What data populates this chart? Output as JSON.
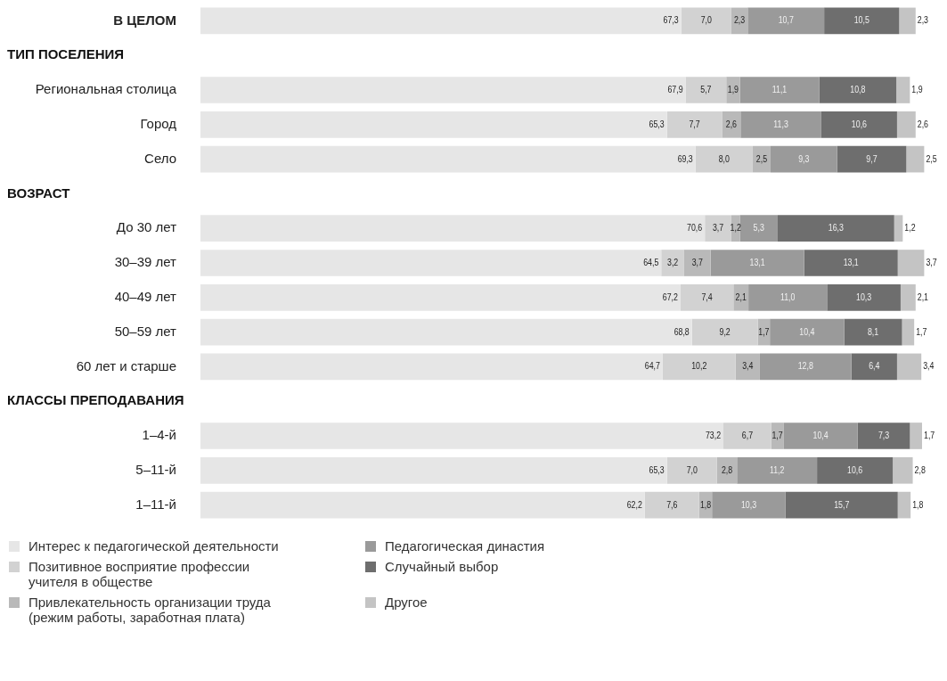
{
  "chart_data": {
    "type": "bar",
    "orientation": "horizontal",
    "stacked": true,
    "legend": "bottom",
    "tick_labels": false,
    "xlim": [
      0,
      101.5
    ],
    "annotations": [
      "ТИП ПОСЕЛЕНИЯ",
      "ВОЗРАСТ",
      "КЛАССЫ ПРЕПОДАВАНИЯ"
    ],
    "categories": [
      "В ЦЕЛОМ",
      null,
      "Региональная столица",
      "Город",
      "Село",
      null,
      "До 30 лет",
      "30–39 лет",
      "40–49 лет",
      "50–59 лет",
      "60 лет и старше",
      null,
      "1–4-й",
      "5–11-й",
      "1–11-й"
    ],
    "series": [
      {
        "name": "Интерес к педагогической деятельности",
        "color": "#e6e6e6",
        "values": [
          67.3,
          null,
          67.9,
          65.3,
          69.3,
          null,
          70.6,
          64.5,
          67.2,
          68.8,
          64.7,
          null,
          73.2,
          65.3,
          62.2
        ],
        "value_labels": [
          "67,3",
          null,
          "67,9",
          "65,3",
          "69,3",
          null,
          "70,6",
          "64,5",
          "67,2",
          "68,8",
          "64,7",
          null,
          "73,2",
          "65,3",
          "62,2"
        ]
      },
      {
        "name": "Позитивное восприятие профессии учителя в обществе",
        "color": "#d2d2d2",
        "values": [
          7.0,
          null,
          5.7,
          7.7,
          8.0,
          null,
          3.7,
          3.2,
          7.4,
          9.2,
          10.2,
          null,
          6.7,
          7.0,
          7.6
        ],
        "value_labels": [
          "7,0",
          null,
          "5,7",
          "7,7",
          "8,0",
          null,
          "3,7",
          "3,2",
          "7,4",
          "9,2",
          "10,2",
          null,
          "6,7",
          "7,0",
          "7,6"
        ]
      },
      {
        "name": "Привлекательность организации труда (режим работы, заработная плата)",
        "color": "#b9b9b9",
        "values": [
          2.3,
          null,
          1.9,
          2.6,
          2.5,
          null,
          1.2,
          3.7,
          2.1,
          1.7,
          3.4,
          null,
          1.7,
          2.8,
          1.8
        ],
        "value_labels": [
          "2,3",
          null,
          "1,9",
          "2,6",
          "2,5",
          null,
          "1,2",
          "3,7",
          "2,1",
          "1,7",
          "3,4",
          null,
          "1,7",
          "2,8",
          "1,8"
        ]
      },
      {
        "name": "Педагогическая династия",
        "color": "#9a9a9a",
        "values": [
          10.7,
          null,
          11.1,
          11.3,
          9.3,
          null,
          5.3,
          13.1,
          11.0,
          10.4,
          12.8,
          null,
          10.4,
          11.2,
          10.3
        ],
        "value_labels": [
          "10,7",
          null,
          "11,1",
          "11,3",
          "9,3",
          null,
          "5,3",
          "13,1",
          "11,0",
          "10,4",
          "12,8",
          null,
          "10,4",
          "11,2",
          "10,3"
        ]
      },
      {
        "name": "Случайный выбор",
        "color": "#6e6e6e",
        "values": [
          10.5,
          null,
          10.8,
          10.6,
          9.7,
          null,
          16.3,
          13.1,
          10.3,
          8.1,
          6.4,
          null,
          7.3,
          10.6,
          15.7
        ],
        "value_labels": [
          "10,5",
          null,
          "10,8",
          "10,6",
          "9,7",
          null,
          "16,3",
          "13,1",
          "10,3",
          "8,1",
          "6,4",
          null,
          "7,3",
          "10,6",
          "15,7"
        ]
      },
      {
        "name": "Другое",
        "color": "#c4c4c4",
        "values": [
          2.3,
          null,
          1.9,
          2.6,
          2.5,
          null,
          1.2,
          3.7,
          2.1,
          1.7,
          3.4,
          null,
          1.7,
          2.8,
          1.8
        ],
        "value_labels": [
          "2,3",
          null,
          "1,9",
          "2,6",
          "2,5",
          null,
          "1,2",
          "3,7",
          "2,1",
          "1,7",
          "3,4",
          null,
          "1,7",
          "2,8",
          "1,8"
        ]
      }
    ]
  }
}
